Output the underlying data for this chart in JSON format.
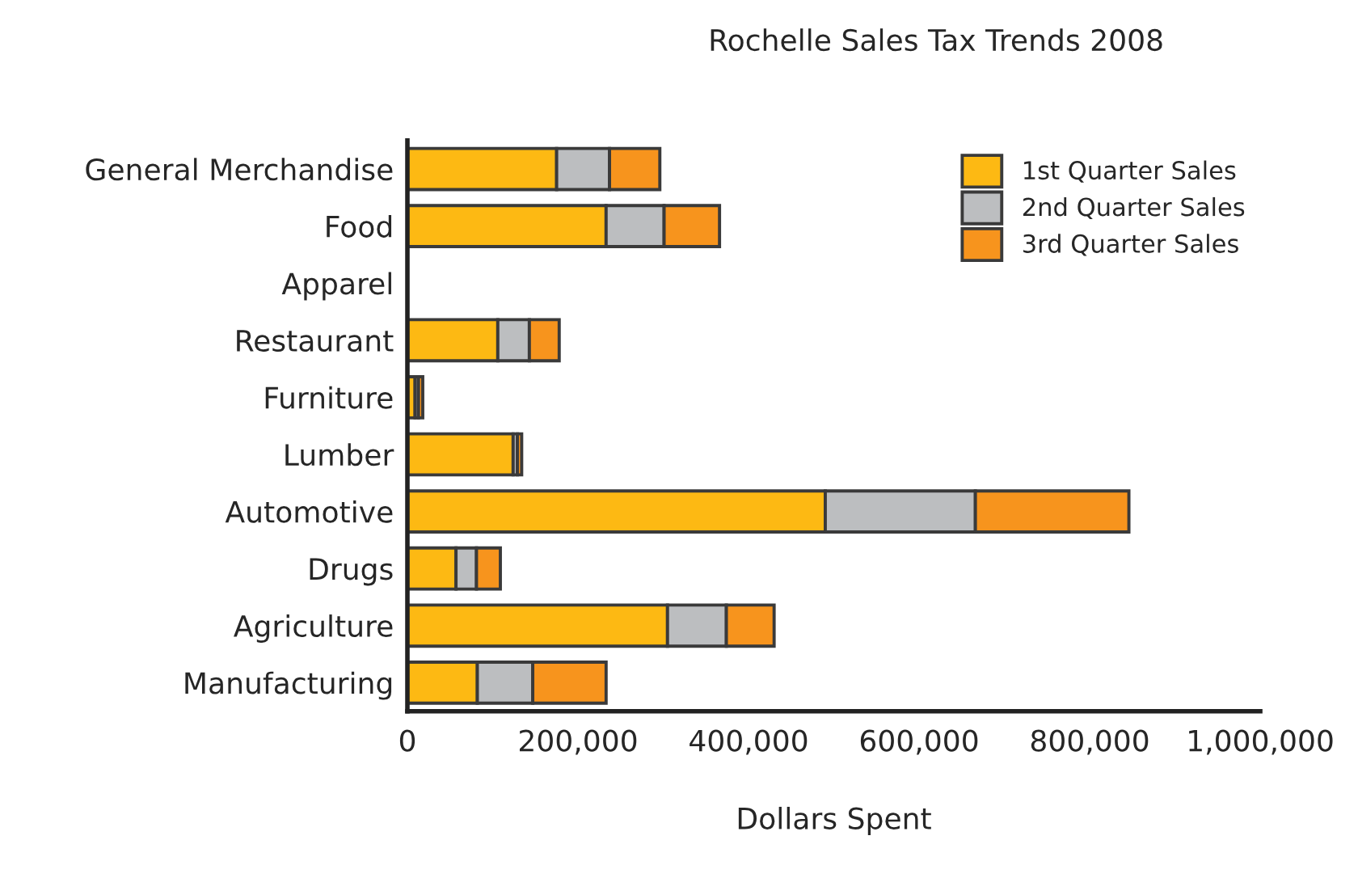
{
  "chart_data": {
    "type": "bar",
    "orientation": "horizontal",
    "stacked": true,
    "title": "Rochelle Sales Tax Trends 2008",
    "xlabel": "Dollars Spent",
    "categories": [
      "General Merchandise",
      "Food",
      "Apparel",
      "Restaurant",
      "Furniture",
      "Lumber",
      "Automotive",
      "Drugs",
      "Agriculture",
      "Manufacturing"
    ],
    "series": [
      {
        "name": "1st Quarter Sales",
        "color": "#fdb913",
        "values": [
          175000,
          233000,
          null,
          106000,
          9000,
          124000,
          490000,
          57000,
          305000,
          82000
        ]
      },
      {
        "name": "2nd Quarter Sales",
        "color": "#bcbec0",
        "values": [
          62000,
          68000,
          null,
          37000,
          4000,
          5000,
          176000,
          24000,
          69000,
          65000
        ]
      },
      {
        "name": "3rd Quarter Sales",
        "color": "#f7941d",
        "values": [
          59000,
          65000,
          null,
          35000,
          5000,
          5000,
          180000,
          28000,
          56000,
          86000
        ]
      }
    ],
    "xlim": [
      0,
      1000000
    ],
    "xticks": [
      {
        "value": 0,
        "label": "0"
      },
      {
        "value": 200000,
        "label": "200,000"
      },
      {
        "value": 400000,
        "label": "400,000"
      },
      {
        "value": 600000,
        "label": "600,000"
      },
      {
        "value": 800000,
        "label": "800,000"
      },
      {
        "value": 1000000,
        "label": "1,000,000"
      }
    ],
    "grid": false,
    "legend": "top right"
  }
}
